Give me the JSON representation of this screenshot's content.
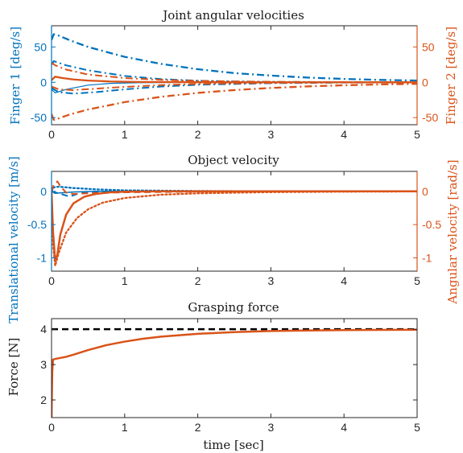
{
  "chart_data": [
    {
      "type": "line",
      "title": "Joint angular velocities",
      "xlabel": "",
      "ylabel_left": "Finger 1 [deg/s]",
      "ylabel_right": "Finger 2 [deg/s]",
      "xlim": [
        0,
        5
      ],
      "ylim": [
        -60,
        80
      ],
      "xticks": [
        "0",
        "1",
        "2",
        "3",
        "4",
        "5"
      ],
      "yticks_left": [
        "-50",
        "0",
        "50"
      ],
      "yticks_right": [
        "-50",
        "0",
        "50"
      ],
      "colors": {
        "finger1": "#0072bd",
        "finger2": "#d95319",
        "axis_text": "#262626"
      },
      "series": [
        {
          "color": "#0072bd",
          "style": "dashdot",
          "width": 2.3,
          "x": [
            0,
            0.03,
            0.1,
            0.25,
            0.5,
            1,
            1.5,
            2,
            2.5,
            3,
            3.5,
            4,
            4.5,
            5
          ],
          "values": [
            60,
            68,
            66,
            59.5,
            50,
            36,
            26,
            18.5,
            13,
            9.5,
            6.7,
            4.8,
            3.4,
            2.5
          ]
        },
        {
          "color": "#0072bd",
          "style": "dashdot",
          "width": 2.0,
          "x": [
            0,
            0.03,
            0.2,
            0.5,
            1,
            1.5,
            2,
            2.5,
            3,
            4,
            5
          ],
          "values": [
            25,
            30,
            24,
            17,
            9,
            4.5,
            2.3,
            1.2,
            0.6,
            0.2,
            0.05
          ]
        },
        {
          "color": "#0072bd",
          "style": "solid",
          "width": 1.2,
          "x": [
            0,
            0.05,
            0.2,
            0.5,
            0.8,
            1.2,
            2,
            3,
            5
          ],
          "values": [
            -10,
            -15,
            -10,
            -4,
            -1.5,
            -0.5,
            0,
            0,
            0
          ]
        },
        {
          "color": "#0072bd",
          "style": "dashdot",
          "width": 2.0,
          "x": [
            0,
            0.1,
            0.3,
            0.6,
            1,
            1.5,
            2,
            3,
            4,
            5
          ],
          "values": [
            -8,
            -14,
            -16,
            -14,
            -10,
            -6,
            -3.5,
            -1.2,
            -0.4,
            -0.1
          ]
        },
        {
          "color": "#d95319",
          "style": "dashdot",
          "width": 2.3,
          "x": [
            0,
            0.03,
            0.1,
            0.25,
            0.5,
            1,
            1.5,
            2,
            2.5,
            3,
            3.5,
            4,
            4.5,
            5
          ],
          "values": [
            -45,
            -53,
            -51,
            -45.5,
            -38.5,
            -28,
            -20.5,
            -15,
            -11,
            -8,
            -5.8,
            -4.2,
            -3,
            -2.2
          ]
        },
        {
          "color": "#d95319",
          "style": "dashdot",
          "width": 2.0,
          "x": [
            0,
            0.05,
            0.2,
            0.5,
            1,
            1.5,
            2,
            2.5,
            3,
            4,
            5
          ],
          "values": [
            28,
            24,
            18,
            11,
            6,
            3.5,
            2,
            1.2,
            0.7,
            0.2,
            0.05
          ]
        },
        {
          "color": "#d95319",
          "style": "solid",
          "width": 2.3,
          "x": [
            0,
            0.05,
            0.15,
            0.3,
            0.5,
            0.8,
            1.2,
            2,
            3,
            5
          ],
          "values": [
            3,
            8,
            6,
            4,
            2.5,
            1.2,
            0.5,
            0.1,
            0,
            0
          ]
        },
        {
          "color": "#d95319",
          "style": "dashdot",
          "width": 2.0,
          "x": [
            0,
            0.1,
            0.3,
            0.6,
            1,
            1.5,
            2,
            3,
            4,
            5
          ],
          "values": [
            -6,
            -10,
            -11,
            -9,
            -6.5,
            -4,
            -2.3,
            -0.8,
            -0.2,
            -0.05
          ]
        }
      ]
    },
    {
      "type": "line",
      "title": "Object velocity",
      "xlabel": "",
      "ylabel_left": "Translational velocity [m/s]",
      "ylabel_right": "Angular velocity [rad/s]",
      "xlim": [
        0,
        5
      ],
      "ylim": [
        -1.2,
        0.3
      ],
      "xticks": [
        "0",
        "1",
        "2",
        "3",
        "4",
        "5"
      ],
      "yticks_left": [
        "-1",
        "-0.5",
        "0"
      ],
      "yticks_right": [
        "-1",
        "-0.5",
        "0"
      ],
      "colors": {
        "left_axis": "#0072bd",
        "right_axis": "#d95319"
      },
      "series": [
        {
          "color": "#0072bd",
          "style": "dotted",
          "width": 2.3,
          "x": [
            0,
            0.03,
            0.1,
            0.3,
            0.6,
            1,
            2,
            3,
            5
          ],
          "values": [
            0,
            0.06,
            0.07,
            0.05,
            0.03,
            0.015,
            0.005,
            0,
            0
          ]
        },
        {
          "color": "#0072bd",
          "style": "solid",
          "width": 1.5,
          "x": [
            0,
            0.05,
            0.15,
            0.3,
            0.6,
            1,
            5
          ],
          "values": [
            0,
            -0.03,
            -0.02,
            -0.01,
            0,
            0,
            0
          ]
        },
        {
          "color": "#0072bd",
          "style": "dashed",
          "width": 2.0,
          "x": [
            0,
            0.1,
            0.25,
            0.35,
            0.5,
            1,
            5
          ],
          "values": [
            0,
            -0.03,
            -0.08,
            -0.04,
            -0.01,
            0,
            0
          ]
        },
        {
          "color": "#d95319",
          "style": "solid",
          "width": 2.5,
          "x": [
            0,
            0.02,
            0.05,
            0.08,
            0.12,
            0.2,
            0.3,
            0.45,
            0.6,
            0.8,
            1.0,
            1.5,
            2,
            5
          ],
          "values": [
            0,
            -0.6,
            -1.05,
            -0.95,
            -0.65,
            -0.35,
            -0.18,
            -0.08,
            -0.04,
            -0.015,
            -0.006,
            0,
            0,
            0
          ]
        },
        {
          "color": "#d95319",
          "style": "dotted",
          "width": 2.3,
          "x": [
            0,
            0.02,
            0.05,
            0.1,
            0.2,
            0.35,
            0.5,
            0.7,
            1,
            1.5,
            2,
            2.5,
            3,
            4,
            5
          ],
          "values": [
            0,
            -0.8,
            -1.12,
            -0.92,
            -0.62,
            -0.4,
            -0.27,
            -0.17,
            -0.1,
            -0.05,
            -0.03,
            -0.02,
            -0.012,
            -0.005,
            -0.002
          ]
        },
        {
          "color": "#d95319",
          "style": "dashed",
          "width": 2.0,
          "x": [
            0,
            0.03,
            0.08,
            0.12,
            0.2,
            0.3,
            0.5,
            1,
            2,
            3,
            5
          ],
          "values": [
            0,
            0.1,
            0.15,
            0.08,
            -0.02,
            -0.04,
            -0.03,
            -0.015,
            -0.005,
            -0.002,
            0
          ]
        }
      ]
    },
    {
      "type": "line",
      "title": "Grasping force",
      "xlabel": "time [sec]",
      "ylabel_left": "Force [N]",
      "xlim": [
        0,
        5
      ],
      "ylim": [
        1.5,
        4.3
      ],
      "xticks": [
        "0",
        "1",
        "2",
        "3",
        "4",
        "5"
      ],
      "yticks_left": [
        "2",
        "3",
        "4"
      ],
      "series": [
        {
          "color": "#000000",
          "style": "dashed",
          "width": 2.5,
          "x": [
            0,
            5
          ],
          "values": [
            4,
            4
          ]
        },
        {
          "color": "#0072bd",
          "style": "solid",
          "width": 1.5,
          "x": [
            0,
            0.005,
            0.01,
            0.02,
            0.05,
            0.1,
            0.2,
            0.3,
            0.5,
            0.75,
            1,
            1.25,
            1.5,
            2,
            2.5,
            3,
            3.5,
            4,
            4.5,
            5
          ],
          "values": [
            1.5,
            2.2,
            2.8,
            3.14,
            3.16,
            3.18,
            3.22,
            3.28,
            3.41,
            3.55,
            3.65,
            3.73,
            3.79,
            3.87,
            3.92,
            3.95,
            3.965,
            3.975,
            3.98,
            3.985
          ]
        },
        {
          "color": "#d95319",
          "style": "solid",
          "width": 2.5,
          "x": [
            0,
            0.005,
            0.01,
            0.02,
            0.05,
            0.1,
            0.2,
            0.3,
            0.5,
            0.75,
            1,
            1.25,
            1.5,
            2,
            2.5,
            3,
            3.5,
            4,
            4.5,
            5
          ],
          "values": [
            1.5,
            2.2,
            2.8,
            3.14,
            3.16,
            3.18,
            3.22,
            3.28,
            3.41,
            3.55,
            3.65,
            3.73,
            3.79,
            3.87,
            3.92,
            3.95,
            3.965,
            3.975,
            3.98,
            3.985
          ]
        }
      ]
    }
  ]
}
